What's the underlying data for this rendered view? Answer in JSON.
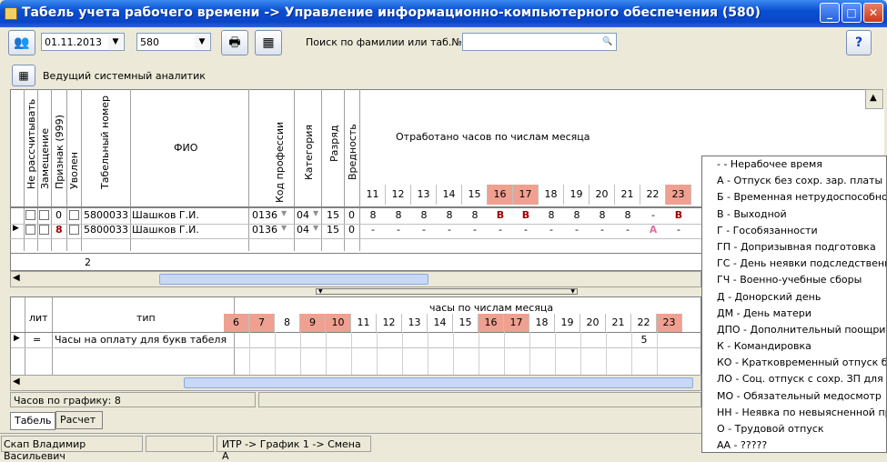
{
  "window": {
    "title": "Табель учета рабочего времени -> Управление информационно-компьютерного обеспечения (580)",
    "btn_min": "_",
    "btn_max": "□",
    "btn_close": "✕"
  },
  "toolbar": {
    "date": "01.11.2013",
    "dept": "580",
    "search_label": "Поиск по фамилии или таб.№",
    "search_value": ""
  },
  "position": "Ведущий системный аналитик",
  "table": {
    "col_headers": {
      "norasch": "Не рассчитывать",
      "zamesh": "Замещение",
      "priznak": "Признак (999)",
      "uvolen": "Уволен",
      "tab": "Табельный номер",
      "fio": "ФИО",
      "kod": "Код профессии",
      "kat": "Категория",
      "razryad": "Разряд",
      "vred": "Вредность",
      "hours": "Отработано часов по числам месяца"
    },
    "days": [
      {
        "d": "11",
        "we": false
      },
      {
        "d": "12",
        "we": false
      },
      {
        "d": "13",
        "we": false
      },
      {
        "d": "14",
        "we": false
      },
      {
        "d": "15",
        "we": false
      },
      {
        "d": "16",
        "we": true
      },
      {
        "d": "17",
        "we": true
      },
      {
        "d": "18",
        "we": false
      },
      {
        "d": "19",
        "we": false
      },
      {
        "d": "20",
        "we": false
      },
      {
        "d": "21",
        "we": false
      },
      {
        "d": "22",
        "we": false
      },
      {
        "d": "23",
        "we": true
      }
    ],
    "rows": [
      {
        "priznak": "0",
        "tab": "5800033",
        "fio": "Шашков Г.И.",
        "kod": "0136",
        "kat": "04",
        "razryad": "15",
        "vred": "0",
        "vals": [
          "8",
          "8",
          "8",
          "8",
          "8",
          "В",
          "В",
          "8",
          "8",
          "8",
          "8",
          "-",
          "В"
        ]
      },
      {
        "priznak": "8",
        "tab": "5800033",
        "fio": "Шашков Г.И.",
        "kod": "0136",
        "kat": "04",
        "razryad": "15",
        "vred": "0",
        "vals": [
          "-",
          "-",
          "-",
          "-",
          "-",
          "-",
          "-",
          "-",
          "-",
          "-",
          "-",
          "А",
          "-"
        ]
      }
    ],
    "total_count": "2"
  },
  "lower": {
    "col_lit": "лит",
    "col_type": "тип",
    "hours_header": "часы по числам месяца",
    "days": [
      {
        "d": "6",
        "we": true
      },
      {
        "d": "7",
        "we": true
      },
      {
        "d": "8",
        "we": false
      },
      {
        "d": "9",
        "we": true
      },
      {
        "d": "10",
        "we": true
      },
      {
        "d": "11",
        "we": false
      },
      {
        "d": "12",
        "we": false
      },
      {
        "d": "13",
        "we": false
      },
      {
        "d": "14",
        "we": false
      },
      {
        "d": "15",
        "we": false
      },
      {
        "d": "16",
        "we": true
      },
      {
        "d": "17",
        "we": true
      },
      {
        "d": "18",
        "we": false
      },
      {
        "d": "19",
        "we": false
      },
      {
        "d": "20",
        "we": false
      },
      {
        "d": "21",
        "we": false
      },
      {
        "d": "22",
        "we": false
      },
      {
        "d": "23",
        "we": true
      }
    ],
    "row": {
      "lit": "=",
      "type": "Часы на оплату для букв табеля",
      "val22": "5"
    }
  },
  "status": {
    "graph_hours": "Часов по графику: 8",
    "user": "Скап Владимир Васильевич",
    "path": "ИТР -> График 1 -> Смена А"
  },
  "tabs": [
    "Табель",
    "Расчет"
  ],
  "codes": [
    "- - Нерабочее время",
    "А - Отпуск без сохр. зар. платы",
    "Б - Временная нетрудоспособност",
    "В - Выходной",
    "Г - Гособязанности",
    "ГП - Допризывная подготовка",
    "ГС - День неявки подследственно",
    "ГЧ - Военно-учебные сборы",
    "Д - Донорский день",
    "ДМ - День матери",
    "ДПО - Дополнительный поощрит",
    "К - Командировка",
    "КО - Кратковременный отпуск бе",
    "ЛО - Соц. отпуск с сохр. ЗП для л",
    "МО - Обязательный медосмотр",
    "НН - Неявка по невыясненной при",
    "О - Трудовой отпуск",
    "АА - ?????"
  ]
}
